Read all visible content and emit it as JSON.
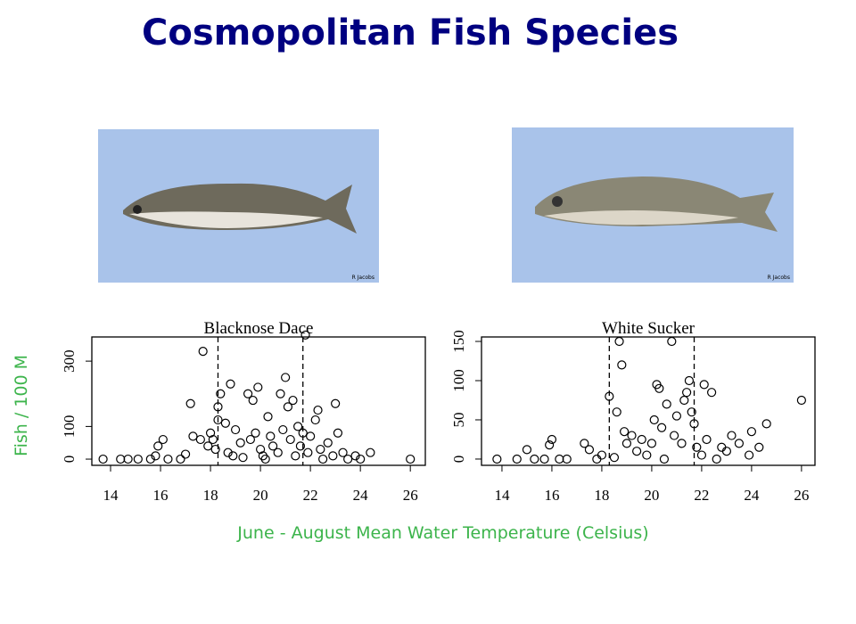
{
  "title": "Cosmopolitan Fish Species",
  "y_label": "Fish / 100 M",
  "x_label": "June - August Mean Water Temperature (Celsius)",
  "photos": [
    {
      "credit": "R Jacobs"
    },
    {
      "credit": "R Jacobs"
    }
  ],
  "chart_data": [
    {
      "type": "scatter",
      "title": "Blacknose Dace",
      "color": "#000000",
      "x": [
        13.7,
        14.4,
        14.7,
        15.1,
        15.6,
        15.8,
        15.9,
        16.1,
        16.3,
        16.8,
        17.0,
        17.2,
        17.3,
        17.6,
        17.7,
        17.9,
        18.0,
        18.1,
        18.2,
        18.3,
        18.3,
        18.4,
        18.6,
        18.7,
        18.8,
        18.9,
        19.0,
        19.2,
        19.3,
        19.5,
        19.6,
        19.7,
        19.8,
        19.9,
        20.0,
        20.1,
        20.2,
        20.3,
        20.4,
        20.5,
        20.7,
        20.8,
        20.9,
        21.0,
        21.1,
        21.2,
        21.3,
        21.4,
        21.5,
        21.6,
        21.7,
        21.8,
        21.9,
        22.0,
        22.2,
        22.3,
        22.4,
        22.5,
        22.7,
        22.9,
        23.0,
        23.1,
        23.3,
        23.5,
        23.8,
        24.0,
        24.4,
        26.0
      ],
      "values": [
        0,
        0,
        0,
        0,
        0,
        10,
        40,
        60,
        0,
        0,
        15,
        170,
        70,
        60,
        330,
        40,
        80,
        60,
        30,
        120,
        160,
        200,
        110,
        20,
        230,
        10,
        90,
        50,
        5,
        200,
        60,
        180,
        80,
        220,
        30,
        10,
        0,
        130,
        70,
        40,
        20,
        200,
        90,
        250,
        160,
        60,
        180,
        10,
        100,
        40,
        80,
        380,
        20,
        70,
        120,
        150,
        30,
        0,
        50,
        10,
        170,
        80,
        20,
        0,
        10,
        0,
        20,
        0
      ],
      "vlines": [
        18.3,
        21.7
      ],
      "xlim": [
        13.25,
        26.6
      ],
      "ylim": [
        -19,
        374
      ],
      "xticks": [
        14,
        16,
        18,
        20,
        22,
        24,
        26
      ],
      "yticks": [
        0,
        100,
        300
      ]
    },
    {
      "type": "scatter",
      "title": "White Sucker",
      "color": "#000000",
      "x": [
        13.8,
        14.6,
        15.0,
        15.3,
        15.7,
        15.9,
        16.0,
        16.3,
        16.6,
        17.3,
        17.5,
        17.8,
        18.0,
        18.3,
        18.5,
        18.6,
        18.7,
        18.8,
        18.9,
        19.0,
        19.2,
        19.4,
        19.6,
        19.8,
        20.0,
        20.1,
        20.2,
        20.3,
        20.4,
        20.5,
        20.6,
        20.8,
        20.9,
        21.0,
        21.2,
        21.3,
        21.4,
        21.5,
        21.6,
        21.7,
        21.8,
        22.0,
        22.1,
        22.2,
        22.4,
        22.6,
        22.8,
        23.0,
        23.2,
        23.5,
        23.9,
        24.0,
        24.3,
        24.6,
        26.0
      ],
      "values": [
        0,
        0,
        12,
        0,
        0,
        18,
        25,
        0,
        0,
        20,
        12,
        0,
        5,
        80,
        2,
        60,
        150,
        120,
        35,
        20,
        30,
        10,
        25,
        5,
        20,
        50,
        95,
        90,
        40,
        0,
        70,
        150,
        30,
        55,
        20,
        75,
        85,
        100,
        60,
        45,
        15,
        5,
        95,
        25,
        85,
        0,
        15,
        10,
        30,
        20,
        5,
        35,
        15,
        45,
        75
      ],
      "vlines": [
        18.3,
        21.7
      ],
      "xlim": [
        13.18,
        26.54
      ],
      "ylim": [
        -8,
        155.7
      ],
      "xticks": [
        14,
        16,
        18,
        20,
        22,
        24,
        26
      ],
      "yticks": [
        0,
        50,
        100,
        150
      ]
    }
  ]
}
